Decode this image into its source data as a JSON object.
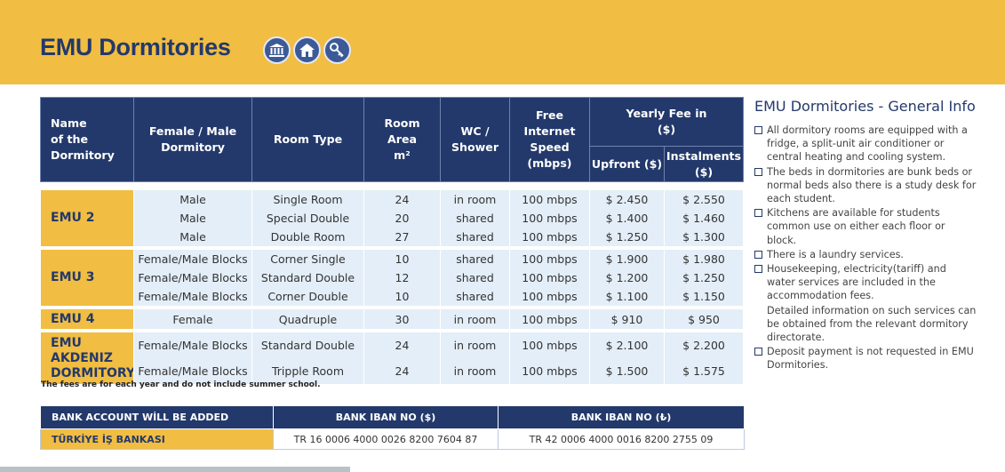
{
  "header": {
    "title": "EMU Dormitories",
    "icons": [
      "building-icon",
      "house-icon",
      "key-icon"
    ],
    "colors": {
      "accent": "#f1bd42",
      "navy": "#23396b",
      "light_row": "#e4eef8"
    }
  },
  "table": {
    "headers": {
      "name": [
        "Name",
        "of the",
        "Dormitory"
      ],
      "gender": [
        "Female / Male",
        "Dormitory"
      ],
      "room_type": "Room Type",
      "area": [
        "Room",
        "Area",
        "m²"
      ],
      "wc": [
        "WC /",
        "Shower"
      ],
      "internet": [
        "Free",
        "Internet",
        "Speed",
        "(mbps)"
      ],
      "yearly_fee": [
        "Yearly Fee in",
        "($)"
      ],
      "upfront": "Upfront ($)",
      "instalments": [
        "Instalments",
        "($)"
      ]
    },
    "dorms": [
      {
        "name": "EMU  2",
        "rows": [
          {
            "gender": "Male",
            "room": "Single Room",
            "area": "24",
            "wc": "in room",
            "internet": "100 mbps",
            "upfront": "$ 2.450",
            "inst": "$ 2.550"
          },
          {
            "gender": "Male",
            "room": "Special Double",
            "area": "20",
            "wc": "shared",
            "internet": "100 mbps",
            "upfront": "$ 1.400",
            "inst": "$ 1.460"
          },
          {
            "gender": "Male",
            "room": "Double Room",
            "area": "27",
            "wc": "shared",
            "internet": "100 mbps",
            "upfront": "$ 1.250",
            "inst": "$ 1.300"
          }
        ]
      },
      {
        "name": "EMU  3",
        "rows": [
          {
            "gender": "Female/Male Blocks",
            "room": "Corner Single",
            "area": "10",
            "wc": "shared",
            "internet": "100 mbps",
            "upfront": "$ 1.900",
            "inst": "$ 1.980"
          },
          {
            "gender": "Female/Male Blocks",
            "room": "Standard Double",
            "area": "12",
            "wc": "shared",
            "internet": "100 mbps",
            "upfront": "$ 1.200",
            "inst": "$ 1.250"
          },
          {
            "gender": "Female/Male Blocks",
            "room": "Corner Double",
            "area": "10",
            "wc": "shared",
            "internet": "100 mbps",
            "upfront": "$ 1.100",
            "inst": "$ 1.150"
          }
        ]
      },
      {
        "name": "EMU  4",
        "rows": [
          {
            "gender": "Female",
            "room": "Quadruple",
            "area": "30",
            "wc": "in room",
            "internet": "100 mbps",
            "upfront": "$ 910",
            "inst": "$ 950"
          }
        ]
      },
      {
        "name": "EMU AKDENIZ DORMITORY",
        "rows": [
          {
            "gender": "Female/Male Blocks",
            "room": "Standard Double",
            "area": "24",
            "wc": "in room",
            "internet": "100 mbps",
            "upfront": "$ 2.100",
            "inst": "$ 2.200"
          },
          {
            "gender": "Female/Male Blocks",
            "room": "Tripple Room",
            "area": "24",
            "wc": "in room",
            "internet": "100 mbps",
            "upfront": "$ 1.500",
            "inst": "$ 1.575"
          }
        ]
      }
    ],
    "note": "The fees are for each year and do not include summer school."
  },
  "bank": {
    "headers": [
      "BANK ACCOUNT WİLL BE ADDED",
      "BANK IBAN NO ($)",
      "BANK IBAN NO (₺)"
    ],
    "row": [
      "TÜRKİYE İŞ BANKASI",
      "TR 16 0006 4000 0026 8200 7604 87",
      "TR 42 0006 4000 0016 8200 2755 09"
    ]
  },
  "info": {
    "title": "EMU Dormitories - General Info",
    "items": [
      {
        "text": "All dormitory rooms are equipped with a fridge, a split-unit air conditioner or central heating and cooling system.",
        "box": true
      },
      {
        "text": "The beds in dormitories are bunk beds or normal beds also there is a study desk for each student.",
        "box": true
      },
      {
        "text": "Kitchens are available for students common use on either each floor or block.",
        "box": true
      },
      {
        "text": "There is a laundry services.",
        "box": true
      },
      {
        "text": "Housekeeping, electricity(tariff) and water services are included in the accommodation fees.",
        "box": true
      },
      {
        "text": "Detailed information on such services can be obtained from the relevant dormitory directorate.",
        "box": false
      },
      {
        "text": "Deposit payment is not requested in EMU Dormitories.",
        "box": true
      }
    ]
  }
}
